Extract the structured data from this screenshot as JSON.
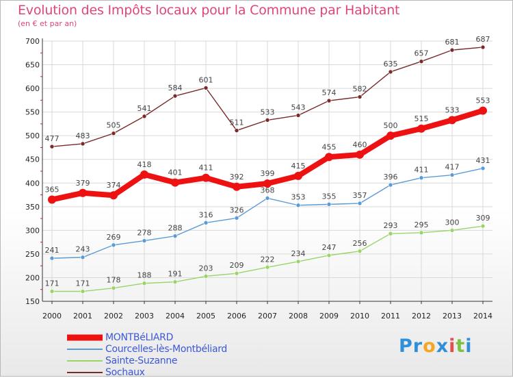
{
  "header": {
    "title": "Evolution des Impôts locaux pour la Commune par Habitant",
    "subtitle": "(en € et par an)"
  },
  "logo": {
    "text": "Proxiti",
    "letters": [
      {
        "ch": "P",
        "color": "#2f8fd8"
      },
      {
        "ch": "r",
        "color": "#2f8fd8"
      },
      {
        "ch": "o",
        "color": "#f5a623"
      },
      {
        "ch": "x",
        "color": "#2f8fd8"
      },
      {
        "ch": "i",
        "color": "#e2504a"
      },
      {
        "ch": "t",
        "color": "#7cc242"
      },
      {
        "ch": "i",
        "color": "#2f8fd8"
      }
    ]
  },
  "colors": {
    "title": "#e0457a",
    "grid": "#d9d9d9",
    "axis": "#333333",
    "tick_red": "#cc2222"
  },
  "chart_data": {
    "type": "line",
    "title": "Evolution des Impôts locaux pour la Commune par Habitant",
    "subtitle": "(en € et par an)",
    "x": [
      2000,
      2001,
      2002,
      2003,
      2004,
      2005,
      2006,
      2007,
      2008,
      2009,
      2010,
      2011,
      2012,
      2013,
      2014
    ],
    "ylim": [
      150,
      700
    ],
    "yticks": [
      150,
      200,
      250,
      300,
      350,
      400,
      450,
      500,
      550,
      600,
      650,
      700
    ],
    "grid": true,
    "legend_position": "bottom-left",
    "series": [
      {
        "name": "Sochaux",
        "color": "#7a2a2a",
        "values": [
          477,
          483,
          505,
          541,
          584,
          601,
          511,
          533,
          543,
          574,
          582,
          635,
          657,
          681,
          687
        ]
      },
      {
        "name": "Courcelles-lès-Montbéliard",
        "color": "#5b9bd5",
        "values": [
          241,
          243,
          269,
          278,
          288,
          316,
          326,
          368,
          353,
          355,
          357,
          396,
          411,
          417,
          431
        ]
      },
      {
        "name": "Sainte-Suzanne",
        "color": "#9ad468",
        "values": [
          171,
          171,
          178,
          188,
          191,
          203,
          209,
          222,
          234,
          247,
          256,
          293,
          295,
          300,
          309
        ]
      },
      {
        "name": "MONTBéLIARD",
        "color": "#ee1111",
        "values": [
          365,
          379,
          374,
          418,
          401,
          411,
          392,
          399,
          415,
          455,
          460,
          500,
          515,
          533,
          553
        ]
      }
    ],
    "legend": [
      {
        "name": "MONTBéLIARD",
        "color": "#ee1111"
      },
      {
        "name": "Courcelles-lès-Montbéliard",
        "color": "#5b9bd5"
      },
      {
        "name": "Sainte-Suzanne",
        "color": "#9ad468"
      },
      {
        "name": "Sochaux",
        "color": "#7a2a2a"
      }
    ]
  }
}
